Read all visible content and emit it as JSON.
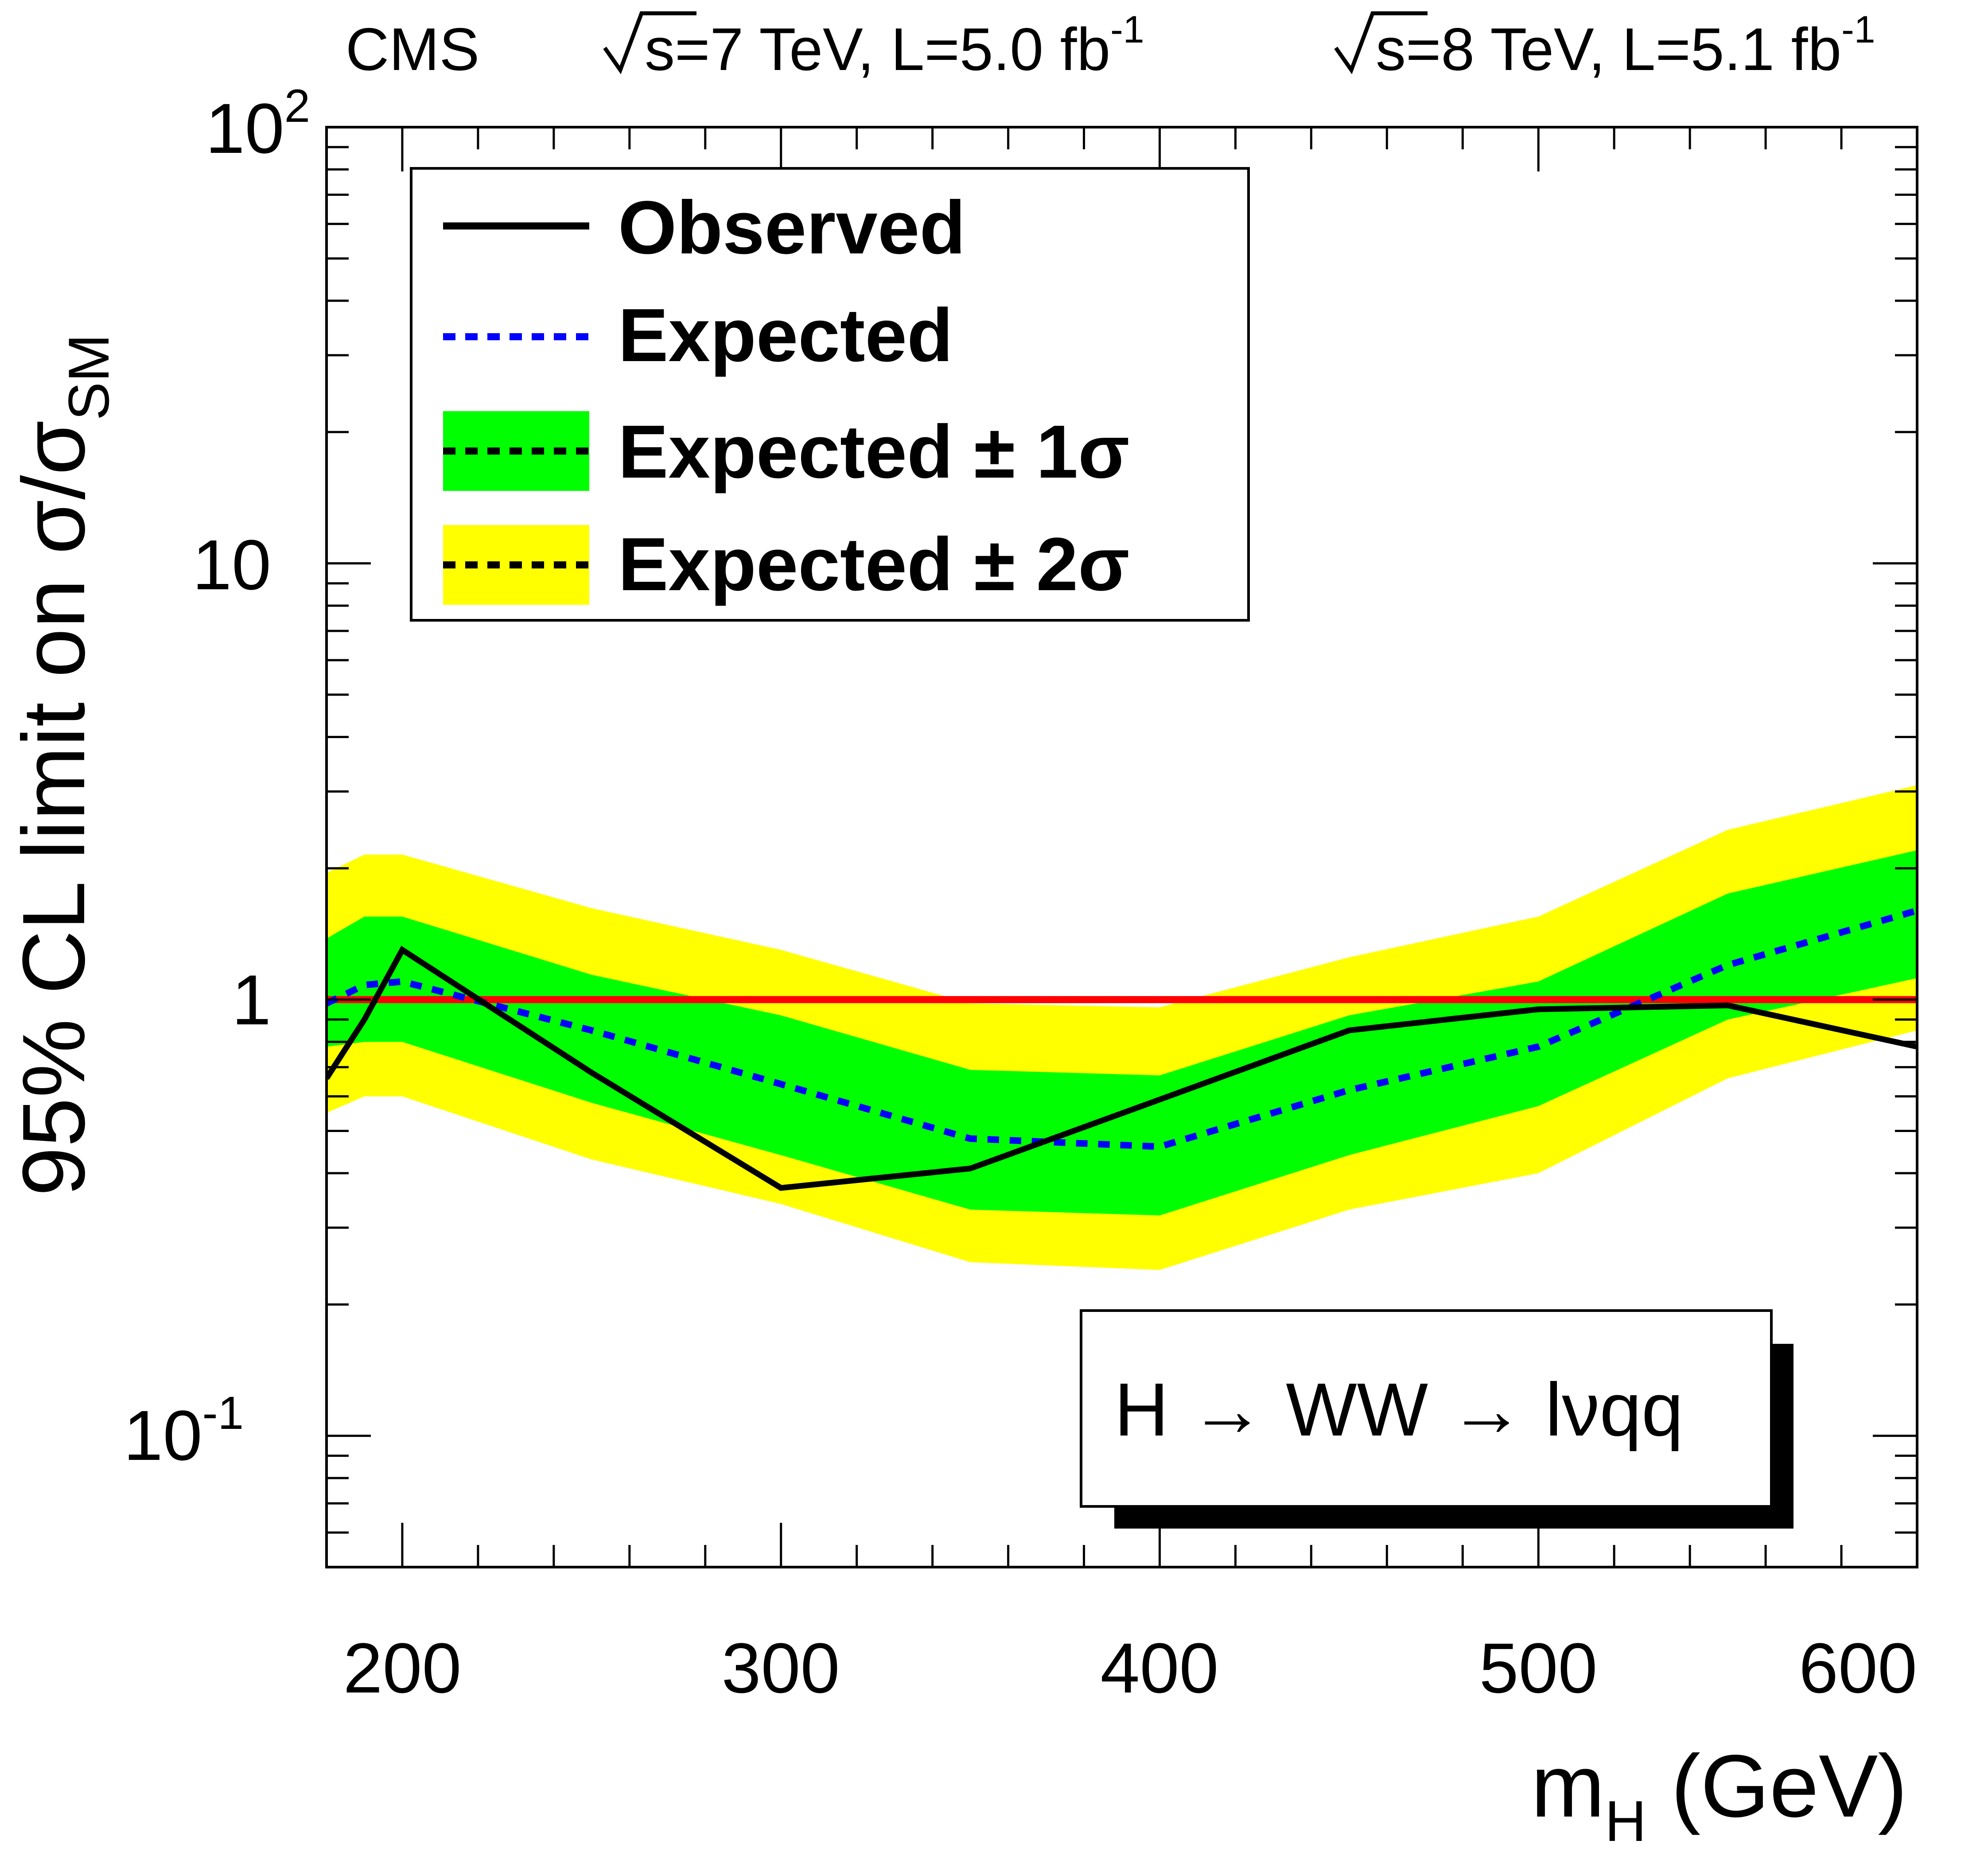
{
  "header": {
    "experiment": "CMS",
    "lumi7": "s=7 TeV, L=5.0 fb",
    "lumi7_sup": "-1",
    "lumi8": "s=8 TeV, L=5.1 fb",
    "lumi8_sup": "-1"
  },
  "axes": {
    "x_title_main": "m",
    "x_title_sub": "H",
    "x_title_unit": "(GeV)",
    "y_title_main": "95% CL limit on σ/σ",
    "y_title_sub": "SM",
    "x_ticks": [
      "200",
      "300",
      "400",
      "500",
      "600"
    ],
    "y_tick_10m1_base": "10",
    "y_tick_10m1_exp": "-1",
    "y_tick_1": "1",
    "y_tick_10": "10",
    "y_tick_100_base": "10",
    "y_tick_100_exp": "2"
  },
  "legend": {
    "observed": "Observed",
    "expected": "Expected",
    "band1": "Expected ± 1σ",
    "band2": "Expected ± 2σ"
  },
  "channel_label": "H → WW → lνqq",
  "colors": {
    "observed": "#000000",
    "expected": "#0000ff",
    "band1": "#00ff00",
    "band2": "#ffff00",
    "sm_line": "#ff0000"
  },
  "chart_data": {
    "type": "line",
    "xlim": [
      180,
      600
    ],
    "ylim": [
      0.05,
      100
    ],
    "y_scale": "log",
    "legend_position": "top-left",
    "x": [
      180,
      190,
      200,
      250,
      300,
      350,
      400,
      450,
      500,
      550,
      600
    ],
    "series": [
      {
        "name": "Observed",
        "values": [
          0.66,
          0.9,
          1.3,
          0.68,
          0.37,
          0.41,
          0.59,
          0.85,
          0.95,
          0.97,
          0.78
        ]
      },
      {
        "name": "Expected",
        "values": [
          0.98,
          1.08,
          1.1,
          0.85,
          0.64,
          0.48,
          0.46,
          0.62,
          0.78,
          1.2,
          1.6
        ]
      }
    ],
    "band_1sigma": {
      "lower": [
        0.78,
        0.8,
        0.8,
        0.58,
        0.44,
        0.33,
        0.32,
        0.44,
        0.57,
        0.9,
        1.12
      ],
      "upper": [
        1.38,
        1.55,
        1.55,
        1.14,
        0.92,
        0.69,
        0.67,
        0.92,
        1.1,
        1.75,
        2.2
      ]
    },
    "band_2sigma": {
      "lower": [
        0.55,
        0.6,
        0.6,
        0.43,
        0.34,
        0.25,
        0.24,
        0.33,
        0.4,
        0.66,
        0.85
      ],
      "upper": [
        1.95,
        2.15,
        2.15,
        1.62,
        1.3,
        0.98,
        0.96,
        1.25,
        1.55,
        2.45,
        3.1
      ]
    },
    "reference_line": {
      "y": 1.0
    }
  }
}
